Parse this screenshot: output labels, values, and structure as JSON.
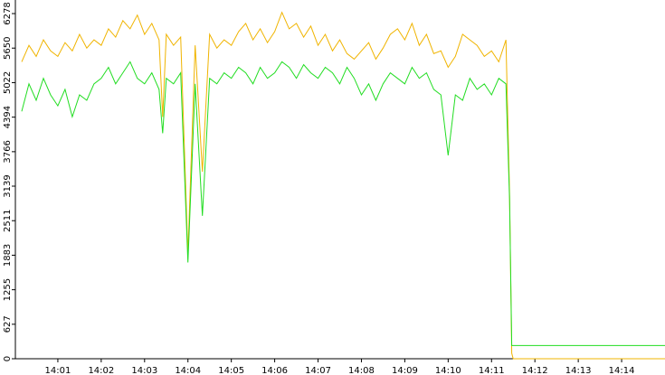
{
  "chart_data": {
    "type": "line",
    "x": [
      "14:00:10",
      "14:00:20",
      "14:00:30",
      "14:00:40",
      "14:00:50",
      "14:01:00",
      "14:01:10",
      "14:01:20",
      "14:01:30",
      "14:01:40",
      "14:01:50",
      "14:02:00",
      "14:02:10",
      "14:02:20",
      "14:02:30",
      "14:02:40",
      "14:02:50",
      "14:03:00",
      "14:03:10",
      "14:03:20",
      "14:03:25",
      "14:03:30",
      "14:03:40",
      "14:03:50",
      "14:04:00",
      "14:04:10",
      "14:04:20",
      "14:04:30",
      "14:04:40",
      "14:04:50",
      "14:05:00",
      "14:05:10",
      "14:05:20",
      "14:05:30",
      "14:05:40",
      "14:05:50",
      "14:06:00",
      "14:06:10",
      "14:06:20",
      "14:06:30",
      "14:06:40",
      "14:06:50",
      "14:07:00",
      "14:07:10",
      "14:07:20",
      "14:07:30",
      "14:07:40",
      "14:07:50",
      "14:08:00",
      "14:08:10",
      "14:08:20",
      "14:08:30",
      "14:08:40",
      "14:08:50",
      "14:09:00",
      "14:09:10",
      "14:09:20",
      "14:09:30",
      "14:09:40",
      "14:09:50",
      "14:10:00",
      "14:10:10",
      "14:10:20",
      "14:10:30",
      "14:10:40",
      "14:10:50",
      "14:11:00",
      "14:11:10",
      "14:11:20",
      "14:11:25",
      "14:11:28",
      "14:11:30",
      "14:15:00"
    ],
    "series": [
      {
        "color": "#f0b400",
        "values": [
          5400,
          5700,
          5500,
          5800,
          5600,
          5500,
          5750,
          5600,
          5900,
          5650,
          5800,
          5700,
          6000,
          5850,
          6150,
          6000,
          6250,
          5900,
          6100,
          5800,
          4400,
          5900,
          5700,
          5850,
          1900,
          5700,
          3400,
          5900,
          5650,
          5800,
          5700,
          5950,
          6100,
          5800,
          6000,
          5750,
          5950,
          6300,
          6000,
          6100,
          5850,
          6050,
          5700,
          5900,
          5600,
          5800,
          5550,
          5450,
          5600,
          5750,
          5450,
          5650,
          5900,
          6000,
          5800,
          6100,
          5700,
          5900,
          5550,
          5600,
          5300,
          5500,
          5900,
          5800,
          5700,
          5500,
          5600,
          5400,
          5800,
          3000,
          100,
          0,
          0
        ]
      },
      {
        "color": "#22dd22",
        "values": [
          4500,
          5000,
          4700,
          5100,
          4800,
          4600,
          4900,
          4400,
          4800,
          4700,
          5000,
          5100,
          5300,
          5000,
          5200,
          5400,
          5100,
          5000,
          5200,
          4900,
          4100,
          5100,
          5000,
          5200,
          1750,
          5000,
          2600,
          5100,
          5000,
          5200,
          5100,
          5300,
          5200,
          5000,
          5300,
          5100,
          5200,
          5400,
          5300,
          5100,
          5350,
          5200,
          5100,
          5300,
          5200,
          5000,
          5300,
          5100,
          4800,
          5000,
          4700,
          5000,
          5200,
          5100,
          5000,
          5300,
          5100,
          5200,
          4900,
          4800,
          3700,
          4800,
          4700,
          5100,
          4900,
          5000,
          4800,
          5100,
          5000,
          2900,
          240,
          240,
          240
        ]
      }
    ],
    "xlim": [
      "14:00:00",
      "14:15:00"
    ],
    "xticks": [
      "14:01",
      "14:02",
      "14:03",
      "14:04",
      "14:05",
      "14:06",
      "14:07",
      "14:08",
      "14:09",
      "14:10",
      "14:11",
      "14:12",
      "14:13",
      "14:14"
    ],
    "ylim": [
      0,
      6525
    ],
    "yticks": [
      0,
      627,
      1255,
      1883,
      2511,
      3139,
      3766,
      4394,
      5022,
      5650,
      6278
    ]
  }
}
